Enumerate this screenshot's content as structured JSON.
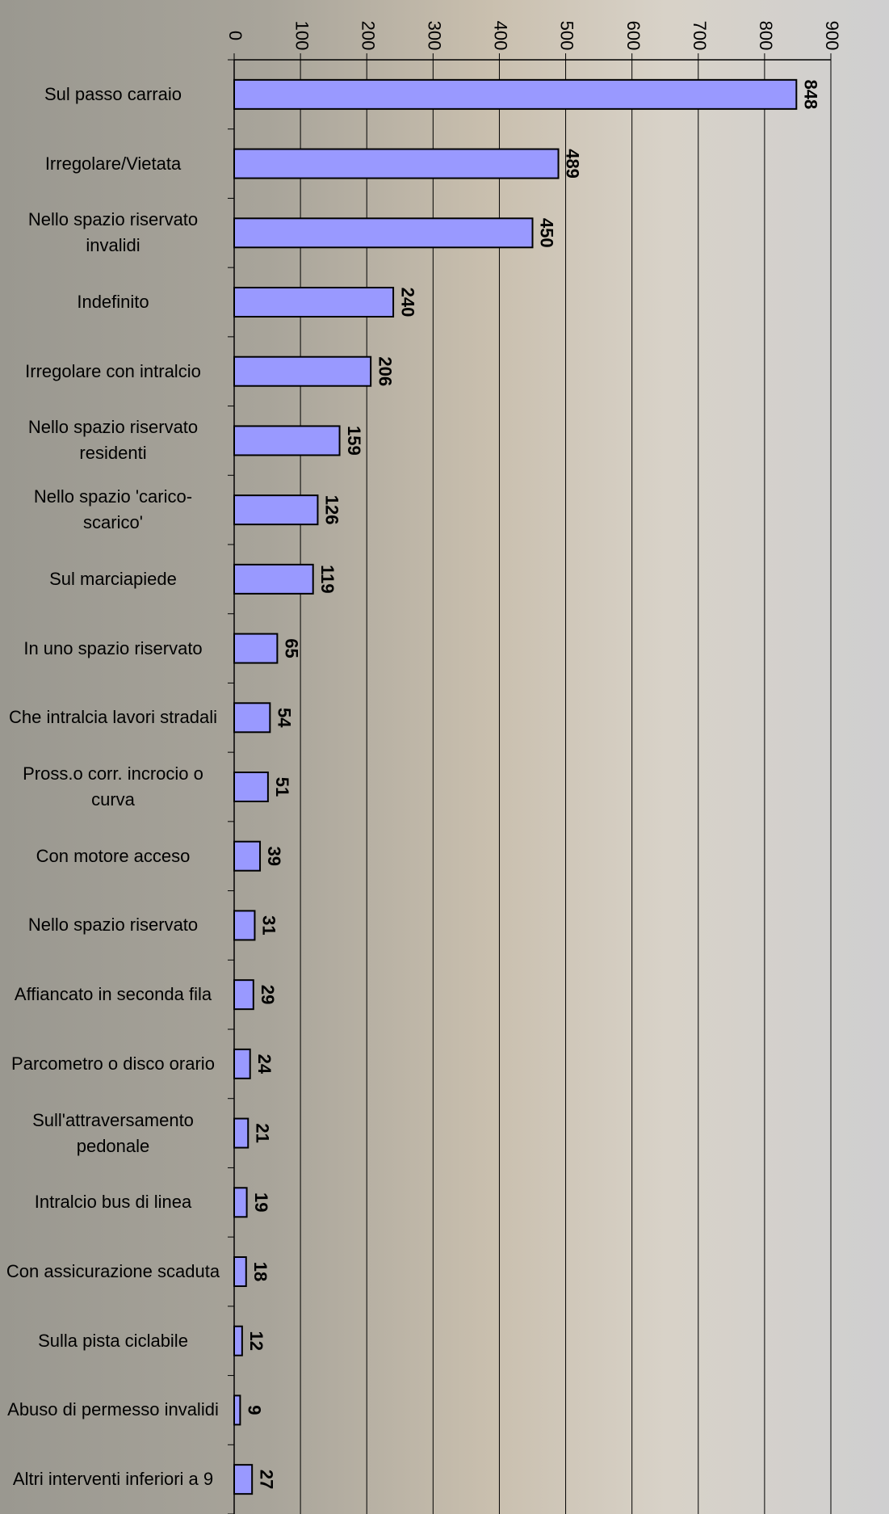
{
  "chart_data": {
    "type": "bar",
    "orientation": "horizontal",
    "categories": [
      "Sul passo carraio",
      "Irregolare/Vietata",
      "Nello spazio riservato invalidi",
      "Indefinito",
      "Irregolare con intralcio",
      "Nello spazio riservato residenti",
      "Nello spazio 'carico-scarico'",
      "Sul marciapiede",
      "In uno spazio riservato",
      "Che intralcia lavori stradali",
      "Pross.o corr. incrocio o curva",
      "Con motore acceso",
      "Nello spazio riservato",
      "Affiancato in seconda fila",
      "Parcometro o disco orario",
      "Sull'attraversamento pedonale",
      "Intralcio bus di linea",
      "Con assicurazione scaduta",
      "Sulla pista ciclabile",
      "Abuso di permesso invalidi",
      "Altri interventi inferiori a 9"
    ],
    "values": [
      848,
      489,
      450,
      240,
      206,
      159,
      126,
      119,
      65,
      54,
      51,
      39,
      31,
      29,
      24,
      21,
      19,
      18,
      12,
      9,
      27
    ],
    "color": "#9999ff",
    "xlim": [
      0,
      900
    ],
    "xticks": [
      0,
      100,
      200,
      300,
      400,
      500,
      600,
      700,
      800,
      900
    ],
    "grid": true
  }
}
